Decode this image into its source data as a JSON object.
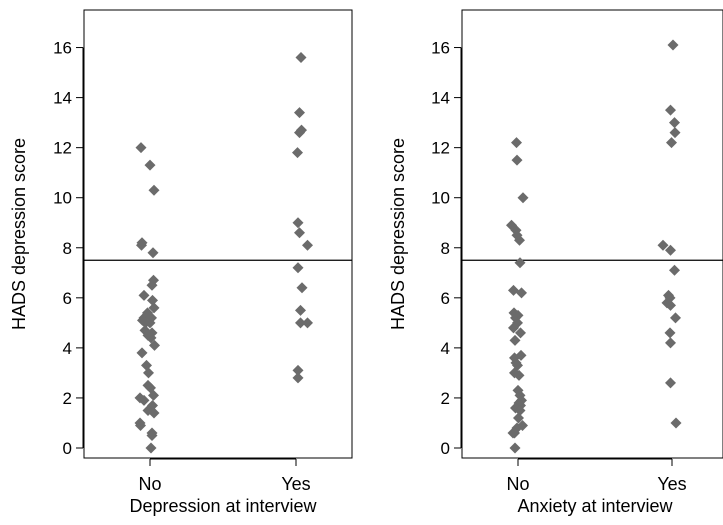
{
  "chart_data": [
    {
      "type": "scatter",
      "xlabel": "Depression at interview",
      "ylabel": "HADS depression score",
      "categories": [
        "No",
        "Yes"
      ],
      "yticks": [
        0,
        2,
        4,
        6,
        8,
        10,
        12,
        14,
        16
      ],
      "ylim": [
        -0.4,
        17.5
      ],
      "reference_line": 7.5,
      "grid": false,
      "marker_color": "#6b6b6b",
      "points": [
        {
          "x": "No",
          "y": 12.0,
          "jitter": -0.18
        },
        {
          "x": "No",
          "y": 11.3,
          "jitter": 0.0
        },
        {
          "x": "No",
          "y": 10.3,
          "jitter": 0.08
        },
        {
          "x": "No",
          "y": 8.2,
          "jitter": -0.16
        },
        {
          "x": "No",
          "y": 8.1,
          "jitter": -0.17
        },
        {
          "x": "No",
          "y": 7.8,
          "jitter": 0.06
        },
        {
          "x": "No",
          "y": 6.7,
          "jitter": 0.07
        },
        {
          "x": "No",
          "y": 6.5,
          "jitter": 0.04
        },
        {
          "x": "No",
          "y": 6.1,
          "jitter": -0.12
        },
        {
          "x": "No",
          "y": 5.9,
          "jitter": 0.05
        },
        {
          "x": "No",
          "y": 5.6,
          "jitter": 0.08
        },
        {
          "x": "No",
          "y": 5.4,
          "jitter": -0.05
        },
        {
          "x": "No",
          "y": 5.2,
          "jitter": -0.12
        },
        {
          "x": "No",
          "y": 5.2,
          "jitter": 0.03
        },
        {
          "x": "No",
          "y": 5.1,
          "jitter": -0.15
        },
        {
          "x": "No",
          "y": 5.0,
          "jitter": -0.09
        },
        {
          "x": "No",
          "y": 5.0,
          "jitter": 0.0
        },
        {
          "x": "No",
          "y": 4.7,
          "jitter": -0.1
        },
        {
          "x": "No",
          "y": 4.6,
          "jitter": 0.04
        },
        {
          "x": "No",
          "y": 4.5,
          "jitter": -0.04
        },
        {
          "x": "No",
          "y": 4.4,
          "jitter": 0.02
        },
        {
          "x": "No",
          "y": 4.1,
          "jitter": 0.09
        },
        {
          "x": "No",
          "y": 3.8,
          "jitter": -0.16
        },
        {
          "x": "No",
          "y": 3.3,
          "jitter": -0.07
        },
        {
          "x": "No",
          "y": 3.0,
          "jitter": -0.03
        },
        {
          "x": "No",
          "y": 2.5,
          "jitter": -0.04
        },
        {
          "x": "No",
          "y": 2.4,
          "jitter": 0.01
        },
        {
          "x": "No",
          "y": 2.1,
          "jitter": 0.07
        },
        {
          "x": "No",
          "y": 2.0,
          "jitter": -0.2
        },
        {
          "x": "No",
          "y": 1.9,
          "jitter": -0.12
        },
        {
          "x": "No",
          "y": 1.7,
          "jitter": 0.05
        },
        {
          "x": "No",
          "y": 1.5,
          "jitter": -0.04
        },
        {
          "x": "No",
          "y": 1.4,
          "jitter": 0.08
        },
        {
          "x": "No",
          "y": 1.0,
          "jitter": -0.2
        },
        {
          "x": "No",
          "y": 0.9,
          "jitter": -0.19
        },
        {
          "x": "No",
          "y": 0.6,
          "jitter": 0.04
        },
        {
          "x": "No",
          "y": 0.5,
          "jitter": 0.04
        },
        {
          "x": "No",
          "y": 0.0,
          "jitter": 0.02
        },
        {
          "x": "Yes",
          "y": 15.6,
          "jitter": 0.1
        },
        {
          "x": "Yes",
          "y": 13.4,
          "jitter": 0.07
        },
        {
          "x": "Yes",
          "y": 12.7,
          "jitter": 0.11
        },
        {
          "x": "Yes",
          "y": 12.6,
          "jitter": 0.07
        },
        {
          "x": "Yes",
          "y": 11.8,
          "jitter": 0.03
        },
        {
          "x": "Yes",
          "y": 9.0,
          "jitter": 0.04
        },
        {
          "x": "Yes",
          "y": 8.6,
          "jitter": 0.07
        },
        {
          "x": "Yes",
          "y": 8.1,
          "jitter": 0.23
        },
        {
          "x": "Yes",
          "y": 7.2,
          "jitter": 0.04
        },
        {
          "x": "Yes",
          "y": 6.4,
          "jitter": 0.12
        },
        {
          "x": "Yes",
          "y": 5.5,
          "jitter": 0.09
        },
        {
          "x": "Yes",
          "y": 5.0,
          "jitter": 0.09
        },
        {
          "x": "Yes",
          "y": 5.0,
          "jitter": 0.23
        },
        {
          "x": "Yes",
          "y": 3.1,
          "jitter": 0.04
        },
        {
          "x": "Yes",
          "y": 2.8,
          "jitter": 0.04
        }
      ]
    },
    {
      "type": "scatter",
      "xlabel": "Anxiety at interview",
      "ylabel": "HADS depression score",
      "categories": [
        "No",
        "Yes"
      ],
      "yticks": [
        0,
        2,
        4,
        6,
        8,
        10,
        12,
        14,
        16
      ],
      "ylim": [
        -0.4,
        17.5
      ],
      "reference_line": 7.5,
      "grid": false,
      "marker_color": "#6b6b6b",
      "points": [
        {
          "x": "No",
          "y": 12.2,
          "jitter": -0.03
        },
        {
          "x": "No",
          "y": 11.5,
          "jitter": -0.02
        },
        {
          "x": "No",
          "y": 10.0,
          "jitter": 0.1
        },
        {
          "x": "No",
          "y": 8.9,
          "jitter": -0.13
        },
        {
          "x": "No",
          "y": 8.7,
          "jitter": -0.04
        },
        {
          "x": "No",
          "y": 8.5,
          "jitter": -0.02
        },
        {
          "x": "No",
          "y": 8.3,
          "jitter": 0.03
        },
        {
          "x": "No",
          "y": 7.4,
          "jitter": 0.04
        },
        {
          "x": "No",
          "y": 6.3,
          "jitter": -0.09
        },
        {
          "x": "No",
          "y": 6.2,
          "jitter": 0.07
        },
        {
          "x": "No",
          "y": 5.4,
          "jitter": -0.08
        },
        {
          "x": "No",
          "y": 5.3,
          "jitter": 0.0
        },
        {
          "x": "No",
          "y": 5.2,
          "jitter": -0.05
        },
        {
          "x": "No",
          "y": 5.0,
          "jitter": -0.01
        },
        {
          "x": "No",
          "y": 4.8,
          "jitter": -0.09
        },
        {
          "x": "No",
          "y": 4.6,
          "jitter": 0.05
        },
        {
          "x": "No",
          "y": 4.3,
          "jitter": -0.06
        },
        {
          "x": "No",
          "y": 3.7,
          "jitter": 0.06
        },
        {
          "x": "No",
          "y": 3.6,
          "jitter": -0.07
        },
        {
          "x": "No",
          "y": 3.4,
          "jitter": -0.04
        },
        {
          "x": "No",
          "y": 3.3,
          "jitter": -0.01
        },
        {
          "x": "No",
          "y": 3.0,
          "jitter": -0.07
        },
        {
          "x": "No",
          "y": 2.9,
          "jitter": 0.02
        },
        {
          "x": "No",
          "y": 2.3,
          "jitter": 0.0
        },
        {
          "x": "No",
          "y": 2.1,
          "jitter": 0.04
        },
        {
          "x": "No",
          "y": 1.9,
          "jitter": 0.07
        },
        {
          "x": "No",
          "y": 1.8,
          "jitter": 0.02
        },
        {
          "x": "No",
          "y": 1.7,
          "jitter": 0.05
        },
        {
          "x": "No",
          "y": 1.6,
          "jitter": -0.05
        },
        {
          "x": "No",
          "y": 1.5,
          "jitter": 0.04
        },
        {
          "x": "No",
          "y": 1.2,
          "jitter": 0.01
        },
        {
          "x": "No",
          "y": 0.9,
          "jitter": 0.09
        },
        {
          "x": "No",
          "y": 0.8,
          "jitter": -0.02
        },
        {
          "x": "No",
          "y": 0.6,
          "jitter": -0.1
        },
        {
          "x": "No",
          "y": 0.6,
          "jitter": -0.07
        },
        {
          "x": "No",
          "y": 0.0,
          "jitter": -0.06
        },
        {
          "x": "Yes",
          "y": 16.1,
          "jitter": 0.02
        },
        {
          "x": "Yes",
          "y": 13.5,
          "jitter": -0.03
        },
        {
          "x": "Yes",
          "y": 13.0,
          "jitter": 0.05
        },
        {
          "x": "Yes",
          "y": 12.6,
          "jitter": 0.06
        },
        {
          "x": "Yes",
          "y": 12.2,
          "jitter": -0.01
        },
        {
          "x": "Yes",
          "y": 8.1,
          "jitter": -0.18
        },
        {
          "x": "Yes",
          "y": 7.9,
          "jitter": -0.03
        },
        {
          "x": "Yes",
          "y": 7.1,
          "jitter": 0.05
        },
        {
          "x": "Yes",
          "y": 6.1,
          "jitter": -0.07
        },
        {
          "x": "Yes",
          "y": 6.0,
          "jitter": -0.04
        },
        {
          "x": "Yes",
          "y": 5.8,
          "jitter": -0.1
        },
        {
          "x": "Yes",
          "y": 5.7,
          "jitter": -0.03
        },
        {
          "x": "Yes",
          "y": 5.2,
          "jitter": 0.07
        },
        {
          "x": "Yes",
          "y": 4.6,
          "jitter": -0.04
        },
        {
          "x": "Yes",
          "y": 4.2,
          "jitter": -0.03
        },
        {
          "x": "Yes",
          "y": 2.6,
          "jitter": -0.03
        },
        {
          "x": "Yes",
          "y": 1.0,
          "jitter": 0.08
        }
      ]
    }
  ]
}
